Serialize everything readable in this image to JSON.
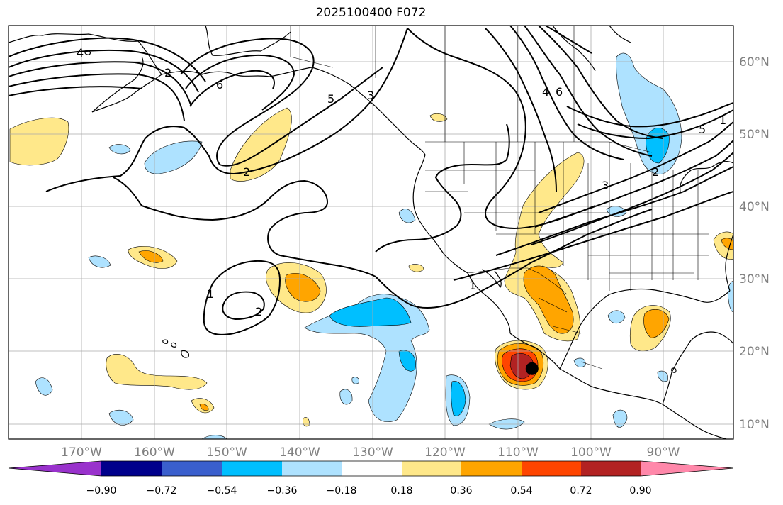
{
  "title": "2025100400 F072",
  "map": {
    "lon_range": [
      -180,
      -81
    ],
    "lat_range": [
      8,
      65
    ],
    "lon_ticks": [
      "170°W",
      "160°W",
      "150°W",
      "140°W",
      "130°W",
      "120°W",
      "110°W",
      "100°W",
      "90°W"
    ],
    "lat_ticks": [
      "60°N",
      "50°N",
      "40°N",
      "30°N",
      "20°N",
      "10°N"
    ],
    "contour_labels": [
      "4",
      "6",
      "5",
      "3",
      "2",
      "1",
      "1",
      "2",
      "2",
      "4",
      "6",
      "5",
      "3",
      "2",
      "1"
    ],
    "marker": {
      "name": "storm-center",
      "lon": -108.5,
      "lat": 17.7
    }
  },
  "colorbar": {
    "ticks": [
      "−0.90",
      "−0.72",
      "−0.54",
      "−0.36",
      "−0.18",
      "0.18",
      "0.36",
      "0.54",
      "0.72",
      "0.90"
    ],
    "colors": [
      "#9932cc",
      "#00008b",
      "#3a5fcd",
      "#00bfff",
      "#aee2ff",
      "#ffffff",
      "#ffe88a",
      "#ffa500",
      "#ff4500",
      "#b22222",
      "#ff88aa"
    ]
  }
}
